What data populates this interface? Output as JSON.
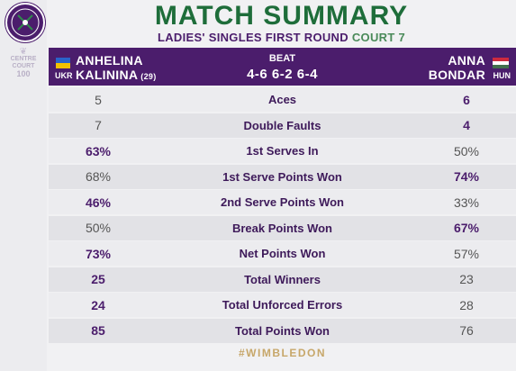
{
  "branding": {
    "logo_icon": "wimbledon-crossed-rackets-icon",
    "centre_court_line1": "CENTRE",
    "centre_court_line2": "COURT",
    "centre_court_number": "100"
  },
  "header": {
    "title": "MATCH SUMMARY",
    "subtitle_main": "LADIES' SINGLES FIRST ROUND",
    "subtitle_court": "COURT 7"
  },
  "match": {
    "player1": {
      "first": "ANHELINA",
      "last": "KALININA",
      "seed": "(29)",
      "country": "UKR"
    },
    "player2": {
      "first": "ANNA",
      "last": "BONDAR",
      "country": "HUN"
    },
    "result_label": "BEAT",
    "score": "4-6 6-2 6-4"
  },
  "stats": [
    {
      "label": "Aces",
      "left": "5",
      "right": "6",
      "leader": "right"
    },
    {
      "label": "Double Faults",
      "left": "7",
      "right": "4",
      "leader": "right"
    },
    {
      "label": "1st Serves In",
      "left": "63%",
      "right": "50%",
      "leader": "left"
    },
    {
      "label": "1st Serve Points Won",
      "left": "68%",
      "right": "74%",
      "leader": "right"
    },
    {
      "label": "2nd Serve Points Won",
      "left": "46%",
      "right": "33%",
      "leader": "left"
    },
    {
      "label": "Break Points Won",
      "left": "50%",
      "right": "67%",
      "leader": "right"
    },
    {
      "label": "Net Points Won",
      "left": "73%",
      "right": "57%",
      "leader": "left"
    },
    {
      "label": "Total Winners",
      "left": "25",
      "right": "23",
      "leader": "left"
    },
    {
      "label": "Total Unforced Errors",
      "left": "24",
      "right": "28",
      "leader": "left"
    },
    {
      "label": "Total Points Won",
      "left": "85",
      "right": "76",
      "leader": "left"
    }
  ],
  "footer": {
    "hashtag": "#WIMBLEDON"
  },
  "colors": {
    "purple": "#4b1d6c",
    "green": "#1e6d3a",
    "gold": "#c7a76a"
  }
}
